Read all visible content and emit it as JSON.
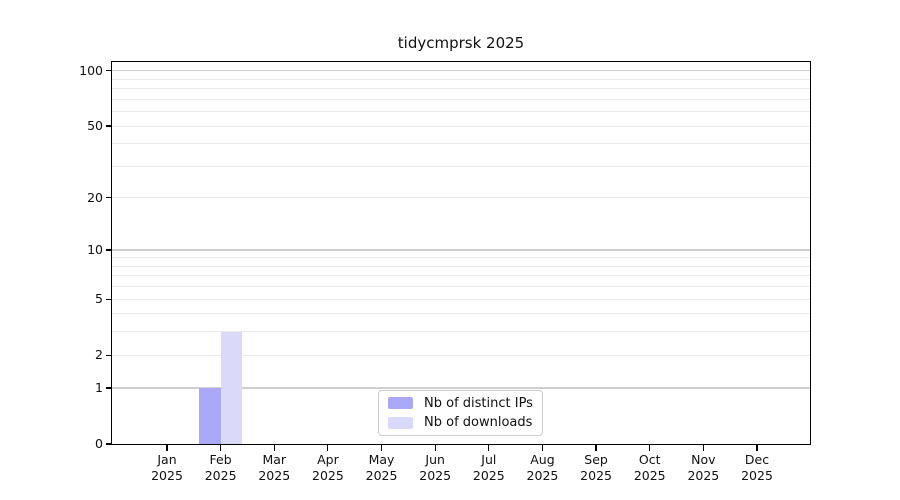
{
  "chart_data": {
    "type": "bar",
    "title": "tidycmprsk 2025",
    "x": {
      "categories": [
        "Jan",
        "Feb",
        "Mar",
        "Apr",
        "May",
        "Jun",
        "Jul",
        "Aug",
        "Sep",
        "Oct",
        "Nov",
        "Dec"
      ],
      "year_label": "2025"
    },
    "series": [
      {
        "name": "Nb of distinct IPs",
        "color": "#a9a9f7",
        "values": [
          0,
          1,
          0,
          0,
          0,
          0,
          0,
          0,
          0,
          0,
          0,
          0
        ]
      },
      {
        "name": "Nb of downloads",
        "color": "#d9d9f9",
        "values": [
          0,
          3,
          0,
          0,
          0,
          0,
          0,
          0,
          0,
          0,
          0,
          0
        ]
      }
    ],
    "y_axis": {
      "scale": "log1p",
      "tick_labels": [
        0,
        1,
        2,
        5,
        10,
        20,
        50,
        100
      ],
      "major_gridlines": [
        1,
        10,
        100
      ],
      "minor_gridlines": [
        2,
        3,
        4,
        5,
        6,
        7,
        8,
        9,
        20,
        30,
        40,
        50,
        60,
        70,
        80,
        90
      ],
      "range": [
        0,
        100
      ]
    },
    "legend": {
      "position": "inside-bottom-center",
      "entries": [
        "Nb of distinct IPs",
        "Nb of downloads"
      ]
    },
    "grid": "horizontal",
    "colors": {
      "major_grid": "#cfcfcf",
      "minor_grid": "#ebebeb",
      "axis": "#000000",
      "legend_border": "#cccccc",
      "background": "#ffffff"
    }
  }
}
